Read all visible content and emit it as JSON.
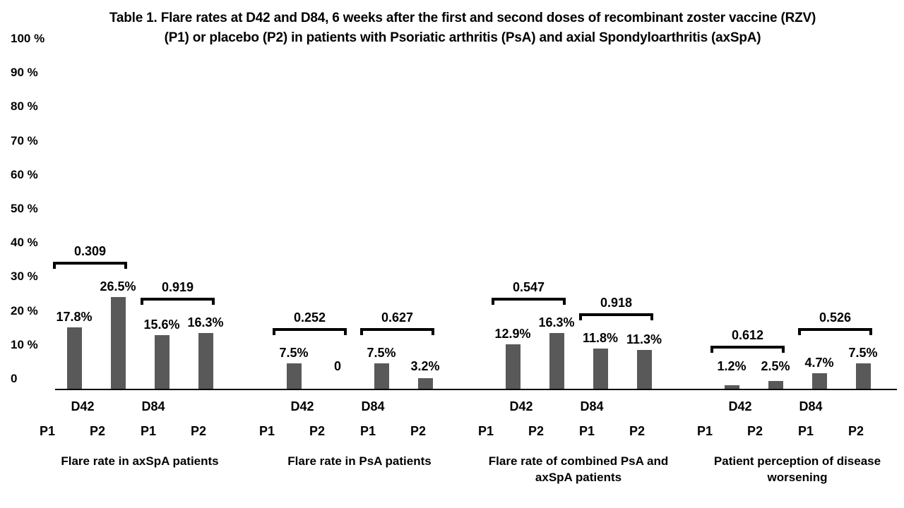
{
  "title": {
    "line1": "Table 1. Flare rates at D42 and D84, 6 weeks after the first and second doses of recombinant zoster vaccine (RZV)",
    "line2": "(P1) or placebo (P2) in patients with Psoriatic arthritis (PsA) and axial Spondyloarthritis (axSpA)"
  },
  "chart_data": {
    "type": "bar",
    "unit": "%",
    "ylim": [
      0,
      100
    ],
    "grid": false,
    "legend": "none",
    "bar_color": "#595959",
    "text_color": "#000000",
    "y_tick_values": [
      100,
      90,
      80,
      70,
      60,
      50,
      40,
      30,
      20,
      10,
      0
    ],
    "y_tick_labels": [
      "100 %",
      "90 %",
      "80 %",
      "70 %",
      "60 %",
      "50 %",
      "40 %",
      "30 %",
      "20 %",
      "10 %",
      "0"
    ],
    "series": [
      "P1",
      "P2"
    ],
    "groups": [
      {
        "name": "Flare rate in axSpA patients",
        "name_lines": [
          "Flare rate in axSpA patients"
        ],
        "pairs": [
          {
            "timepoint": "D42",
            "p_value": "0.309",
            "bars": [
              {
                "series": "P1",
                "value": 17.8,
                "label": "17.8%"
              },
              {
                "series": "P2",
                "value": 26.5,
                "label": "26.5%"
              }
            ]
          },
          {
            "timepoint": "D84",
            "p_value": "0.919",
            "bars": [
              {
                "series": "P1",
                "value": 15.6,
                "label": "15.6%"
              },
              {
                "series": "P2",
                "value": 16.3,
                "label": "16.3%"
              }
            ]
          }
        ]
      },
      {
        "name": "Flare rate in PsA patients",
        "name_lines": [
          "Flare rate in PsA patients"
        ],
        "pairs": [
          {
            "timepoint": "D42",
            "p_value": "0.252",
            "bars": [
              {
                "series": "P1",
                "value": 7.5,
                "label": "7.5%"
              },
              {
                "series": "P2",
                "value": 0,
                "label": "0"
              }
            ]
          },
          {
            "timepoint": "D84",
            "p_value": "0.627",
            "bars": [
              {
                "series": "P1",
                "value": 7.5,
                "label": "7.5%"
              },
              {
                "series": "P2",
                "value": 3.2,
                "label": "3.2%"
              }
            ]
          }
        ]
      },
      {
        "name": "Flare rate of combined PsA and axSpA patients",
        "name_lines": [
          "Flare rate of combined PsA and",
          "axSpA patients"
        ],
        "pairs": [
          {
            "timepoint": "D42",
            "p_value": "0.547",
            "bars": [
              {
                "series": "P1",
                "value": 12.9,
                "label": "12.9%"
              },
              {
                "series": "P2",
                "value": 16.3,
                "label": "16.3%"
              }
            ]
          },
          {
            "timepoint": "D84",
            "p_value": "0.918",
            "bars": [
              {
                "series": "P1",
                "value": 11.8,
                "label": "11.8%"
              },
              {
                "series": "P2",
                "value": 11.3,
                "label": "11.3%"
              }
            ]
          }
        ]
      },
      {
        "name": "Patient perception of disease worsening",
        "name_lines": [
          "Patient perception of disease",
          "worsening"
        ],
        "pairs": [
          {
            "timepoint": "D42",
            "p_value": "0.612",
            "bars": [
              {
                "series": "P1",
                "value": 1.2,
                "label": "1.2%"
              },
              {
                "series": "P2",
                "value": 2.5,
                "label": "2.5%"
              }
            ]
          },
          {
            "timepoint": "D84",
            "p_value": "0.526",
            "bars": [
              {
                "series": "P1",
                "value": 4.7,
                "label": "4.7%"
              },
              {
                "series": "P2",
                "value": 7.5,
                "label": "7.5%"
              }
            ]
          }
        ]
      }
    ]
  }
}
